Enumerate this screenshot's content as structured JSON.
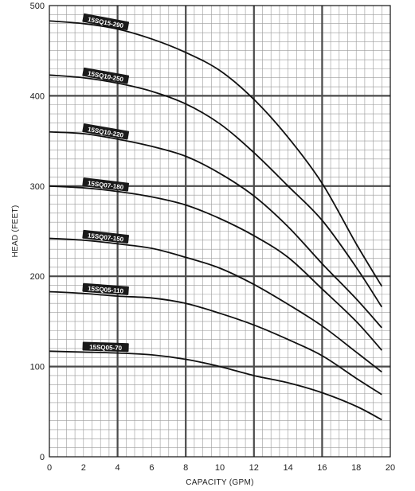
{
  "chart_data": {
    "type": "line",
    "title": "",
    "xlabel": "CAPACITY (GPM)",
    "ylabel": "HEAD (FEET)",
    "xlim": [
      0,
      20
    ],
    "ylim": [
      0,
      500
    ],
    "x_ticks": [
      0,
      2,
      4,
      6,
      8,
      10,
      12,
      14,
      16,
      18,
      20
    ],
    "y_ticks": [
      0,
      100,
      200,
      300,
      400,
      500
    ],
    "grid": true,
    "grid_minor_x": 0.5,
    "grid_minor_y": 10,
    "grid_major_x": 4,
    "grid_major_y": 100,
    "line_color": "#111111",
    "grid_minor_color": "#9a9a9a",
    "grid_major_color": "#4a4a4a",
    "label_bg_color": "#1a1a1a",
    "series": [
      {
        "name": "15SQ15-290",
        "x": [
          0,
          2,
          4,
          6,
          8,
          10,
          12,
          14,
          16,
          18,
          19.5
        ],
        "y": [
          483,
          480,
          474,
          463,
          448,
          428,
          396,
          354,
          303,
          236,
          189
        ]
      },
      {
        "name": "15SQ10-250",
        "x": [
          0,
          2,
          4,
          6,
          8,
          10,
          12,
          14,
          16,
          18,
          19.5
        ],
        "y": [
          423,
          420,
          414,
          405,
          391,
          369,
          337,
          300,
          262,
          210,
          166
        ]
      },
      {
        "name": "15SQ10-220",
        "x": [
          0,
          2,
          4,
          6,
          8,
          10,
          12,
          14,
          16,
          18,
          19.5
        ],
        "y": [
          360,
          358,
          352,
          344,
          333,
          314,
          289,
          255,
          214,
          175,
          143
        ]
      },
      {
        "name": "15SQ07-180",
        "x": [
          0,
          2,
          4,
          6,
          8,
          10,
          12,
          14,
          16,
          18,
          19.5
        ],
        "y": [
          300,
          298,
          294,
          288,
          279,
          264,
          245,
          221,
          186,
          150,
          118
        ]
      },
      {
        "name": "15SQ07-150",
        "x": [
          0,
          2,
          4,
          6,
          8,
          10,
          12,
          14,
          16,
          18,
          19.5
        ],
        "y": [
          242,
          240,
          236,
          231,
          221,
          209,
          191,
          169,
          145,
          116,
          94
        ]
      },
      {
        "name": "15SQ05-110",
        "x": [
          0,
          2,
          4,
          6,
          8,
          10,
          12,
          14,
          16,
          18,
          19.5
        ],
        "y": [
          183,
          181,
          178,
          176,
          170,
          159,
          146,
          130,
          112,
          87,
          69
        ]
      },
      {
        "name": "15SQ05-70",
        "x": [
          0,
          2,
          4,
          6,
          8,
          10,
          12,
          14,
          16,
          18,
          19.5
        ],
        "y": [
          117,
          116,
          115,
          113,
          108,
          100,
          90,
          82,
          71,
          56,
          41
        ]
      }
    ]
  }
}
